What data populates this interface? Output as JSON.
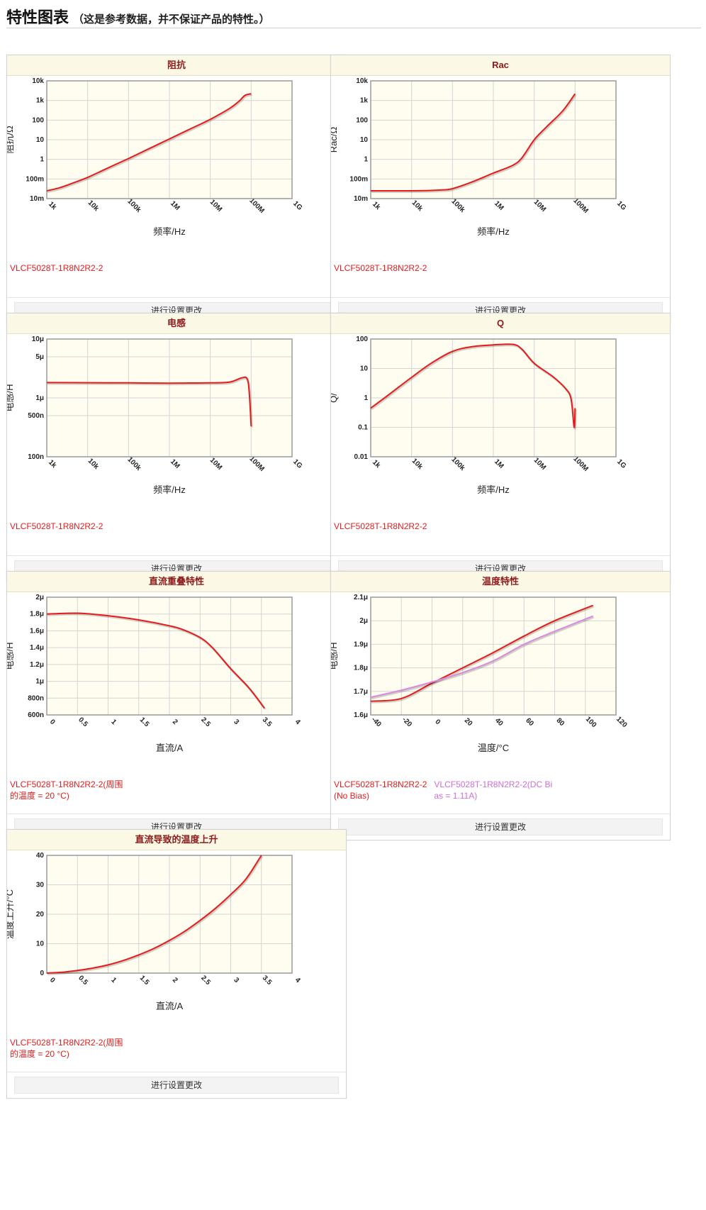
{
  "page": {
    "title": "特性图表",
    "subtitle": "（这是参考数据，并不保证产品的特性。）",
    "settings_label": "进行设置更改"
  },
  "colors": {
    "series_red": "#e31d1d",
    "series_violet": "#d98be0",
    "legend_red": "#e31d1d",
    "legend_violet": "#cc6fd6",
    "plot_bg": "#fffcf0",
    "grid": "#d4d4d4",
    "header_bg": "#fbf8e6",
    "header_text": "#8c1a1a"
  },
  "chart_data": [
    {
      "id": "impedance",
      "type": "line",
      "title": "阻抗",
      "xlabel": "频率/Hz",
      "ylabel": "阻抗/Ω",
      "x_scale": "log",
      "y_scale": "log",
      "xlim": [
        1000,
        1000000000
      ],
      "ylim": [
        0.01,
        10000
      ],
      "x_ticks": [
        1000,
        10000,
        100000,
        1000000,
        10000000,
        100000000,
        1000000000
      ],
      "x_tick_labels": [
        "1k",
        "10k",
        "100k",
        "1M",
        "10M",
        "100M",
        "1G"
      ],
      "y_ticks": [
        0.01,
        0.1,
        1,
        10,
        100,
        1000,
        10000
      ],
      "y_tick_labels": [
        "10m",
        "100m",
        "1",
        "10",
        "100",
        "1k",
        "10k"
      ],
      "grid": true,
      "series": [
        {
          "name": "VLCF5028T-1R8N2R2-2",
          "color": "#e31d1d",
          "x": [
            1000,
            2000,
            4000,
            10000,
            30000,
            100000,
            300000,
            1000000,
            3000000,
            10000000,
            30000000,
            50000000,
            70000000,
            100000000
          ],
          "y": [
            0.025,
            0.035,
            0.058,
            0.12,
            0.35,
            1.1,
            3.3,
            11,
            33,
            110,
            400,
            900,
            1800,
            2200
          ]
        }
      ],
      "legend": [
        [
          "VLCF5028T-1R8N2R2-2"
        ]
      ]
    },
    {
      "id": "rac",
      "type": "line",
      "title": "Rac",
      "xlabel": "频率/Hz",
      "ylabel": "Rac/Ω",
      "x_scale": "log",
      "y_scale": "log",
      "xlim": [
        1000,
        1000000000
      ],
      "ylim": [
        0.01,
        10000
      ],
      "x_ticks": [
        1000,
        10000,
        100000,
        1000000,
        10000000,
        100000000,
        1000000000
      ],
      "x_tick_labels": [
        "1k",
        "10k",
        "100k",
        "1M",
        "10M",
        "100M",
        "1G"
      ],
      "y_ticks": [
        0.01,
        0.1,
        1,
        10,
        100,
        1000,
        10000
      ],
      "y_tick_labels": [
        "10m",
        "100m",
        "1",
        "10",
        "100",
        "1k",
        "10k"
      ],
      "grid": true,
      "series": [
        {
          "name": "VLCF5028T-1R8N2R2-2",
          "color": "#e31d1d",
          "x": [
            1000,
            10000,
            30000,
            60000,
            100000,
            300000,
            1000000,
            3000000,
            5000000,
            10000000,
            20000000,
            50000000,
            100000000
          ],
          "y": [
            0.025,
            0.025,
            0.026,
            0.028,
            0.032,
            0.07,
            0.2,
            0.5,
            1.2,
            10,
            45,
            300,
            2200
          ]
        }
      ],
      "legend": [
        [
          "VLCF5028T-1R8N2R2-2"
        ]
      ]
    },
    {
      "id": "inductance",
      "type": "line",
      "title": "电感",
      "xlabel": "频率/Hz",
      "ylabel": "电感/H",
      "x_scale": "log",
      "y_scale": "log",
      "xlim": [
        1000,
        1000000000
      ],
      "ylim": [
        1e-07,
        1e-05
      ],
      "x_ticks": [
        1000,
        10000,
        100000,
        1000000,
        10000000,
        100000000,
        1000000000
      ],
      "x_tick_labels": [
        "1k",
        "10k",
        "100k",
        "1M",
        "10M",
        "100M",
        "1G"
      ],
      "y_ticks": [
        1e-07,
        5e-07,
        1e-06,
        5e-06,
        1e-05
      ],
      "y_tick_labels": [
        "100n",
        "500n",
        "1μ",
        "5μ",
        "10μ"
      ],
      "grid": true,
      "series": [
        {
          "name": "VLCF5028T-1R8N2R2-2",
          "color": "#e31d1d",
          "x": [
            1000,
            10000,
            100000,
            1000000,
            3000000,
            10000000,
            30000000,
            60000000,
            80000000,
            90000000,
            100000000
          ],
          "y": [
            1.82e-06,
            1.81e-06,
            1.8e-06,
            1.78e-06,
            1.79e-06,
            1.8e-06,
            1.86e-06,
            2.2e-06,
            2.1e-06,
            1.2e-06,
            3.3e-07
          ]
        }
      ],
      "legend": [
        [
          "VLCF5028T-1R8N2R2-2"
        ]
      ]
    },
    {
      "id": "q",
      "type": "line",
      "title": "Q",
      "xlabel": "频率/Hz",
      "ylabel": "Q/",
      "x_scale": "log",
      "y_scale": "log",
      "xlim": [
        1000,
        1000000000
      ],
      "ylim": [
        0.01,
        100
      ],
      "x_ticks": [
        1000,
        10000,
        100000,
        1000000,
        10000000,
        100000000,
        1000000000
      ],
      "x_tick_labels": [
        "1k",
        "10k",
        "100k",
        "1M",
        "10M",
        "100M",
        "1G"
      ],
      "y_ticks": [
        0.01,
        0.1,
        1,
        10,
        100
      ],
      "y_tick_labels": [
        "0.01",
        "0.1",
        "1",
        "10",
        "100"
      ],
      "grid": true,
      "series": [
        {
          "name": "VLCF5028T-1R8N2R2-2",
          "color": "#e31d1d",
          "x": [
            1000,
            3000,
            10000,
            30000,
            100000,
            300000,
            1000000,
            3000000,
            5000000,
            10000000,
            30000000,
            60000000,
            80000000,
            95000000,
            100000000
          ],
          "y": [
            0.45,
            1.4,
            5,
            15,
            38,
            55,
            63,
            66,
            45,
            15,
            5,
            2,
            0.9,
            0.1,
            0.45
          ]
        }
      ],
      "legend": [
        [
          "VLCF5028T-1R8N2R2-2"
        ]
      ]
    },
    {
      "id": "dc_bias",
      "type": "line",
      "title": "直流重叠特性",
      "xlabel": "直流/A",
      "ylabel": "电感/H",
      "x_scale": "linear",
      "y_scale": "linear",
      "xlim": [
        0,
        4
      ],
      "ylim": [
        6e-07,
        2e-06
      ],
      "x_ticks": [
        0,
        0.5,
        1,
        1.5,
        2,
        2.5,
        3,
        3.5,
        4
      ],
      "x_tick_labels": [
        "0",
        "0.5",
        "1",
        "1.5",
        "2",
        "2.5",
        "3",
        "3.5",
        "4"
      ],
      "y_ticks": [
        6e-07,
        8e-07,
        1e-06,
        1.2e-06,
        1.4e-06,
        1.6e-06,
        1.8e-06,
        2e-06
      ],
      "y_tick_labels": [
        "600n",
        "800n",
        "1μ",
        "1.2μ",
        "1.4μ",
        "1.6μ",
        "1.8μ",
        "2μ"
      ],
      "grid": true,
      "series": [
        {
          "name": "VLCF5028T-1R8N2R2-2(周围的温度 = 20 °C)",
          "color": "#e31d1d",
          "x": [
            0,
            0.5,
            1,
            1.5,
            2,
            2.2,
            2.5,
            2.7,
            3,
            3.3,
            3.55
          ],
          "y": [
            1.8e-06,
            1.81e-06,
            1.78e-06,
            1.73e-06,
            1.66e-06,
            1.62e-06,
            1.52e-06,
            1.4e-06,
            1.15e-06,
            9.2e-07,
            6.8e-07
          ]
        }
      ],
      "legend": [
        [
          "VLCF5028T-1R8N2R2-2(周围",
          "的温度 = 20 °C)"
        ]
      ]
    },
    {
      "id": "temperature",
      "type": "line",
      "title": "温度特性",
      "xlabel": "温度/°C",
      "ylabel": "电感/H",
      "x_scale": "linear",
      "y_scale": "linear",
      "xlim": [
        -40,
        120
      ],
      "ylim": [
        1.6e-06,
        2.1e-06
      ],
      "x_ticks": [
        -40,
        -20,
        0,
        20,
        40,
        60,
        80,
        100,
        120
      ],
      "x_tick_labels": [
        "-40",
        "-20",
        "0",
        "20",
        "40",
        "60",
        "80",
        "100",
        "120"
      ],
      "y_ticks": [
        1.6e-06,
        1.7e-06,
        1.8e-06,
        1.9e-06,
        2e-06,
        2.1e-06
      ],
      "y_tick_labels": [
        "1.6μ",
        "1.7μ",
        "1.8μ",
        "1.9μ",
        "2μ",
        "2.1μ"
      ],
      "grid": true,
      "series": [
        {
          "name": "VLCF5028T-1R8N2R2-2(No Bias)",
          "color": "#e31d1d",
          "x": [
            -40,
            -20,
            0,
            20,
            40,
            60,
            80,
            105
          ],
          "y": [
            1.658e-06,
            1.67e-06,
            1.735e-06,
            1.8e-06,
            1.865e-06,
            1.935e-06,
            2e-06,
            2.065e-06
          ]
        },
        {
          "name": "VLCF5028T-1R8N2R2-2(DC Bias = 1.11A)",
          "color": "#d98be0",
          "x": [
            -40,
            -20,
            0,
            20,
            40,
            60,
            80,
            105
          ],
          "y": [
            1.675e-06,
            1.705e-06,
            1.74e-06,
            1.78e-06,
            1.83e-06,
            1.9e-06,
            1.955e-06,
            2.02e-06
          ]
        }
      ],
      "legend": [
        [
          "VLCF5028T-1R8N2R2-2",
          "(No Bias)"
        ],
        [
          "VLCF5028T-1R8N2R2-2(DC Bi",
          "as = 1.11A)"
        ]
      ]
    },
    {
      "id": "temp_rise",
      "type": "line",
      "title": "直流导致的温度上升",
      "xlabel": "直流/A",
      "ylabel": "温度上升/°C",
      "x_scale": "linear",
      "y_scale": "linear",
      "xlim": [
        0,
        4
      ],
      "ylim": [
        0,
        40
      ],
      "x_ticks": [
        0,
        0.5,
        1,
        1.5,
        2,
        2.5,
        3,
        3.5,
        4
      ],
      "x_tick_labels": [
        "0",
        "0.5",
        "1",
        "1.5",
        "2",
        "2.5",
        "3",
        "3.5",
        "4"
      ],
      "y_ticks": [
        0,
        10,
        20,
        30,
        40
      ],
      "y_tick_labels": [
        "0",
        "10",
        "20",
        "30",
        "40"
      ],
      "grid": true,
      "series": [
        {
          "name": "VLCF5028T-1R8N2R2-2(周围的温度 = 20 °C)",
          "color": "#e31d1d",
          "x": [
            0,
            0.25,
            0.5,
            0.75,
            1,
            1.25,
            1.5,
            1.75,
            2,
            2.25,
            2.5,
            2.75,
            3,
            3.25,
            3.5
          ],
          "y": [
            0,
            0.3,
            0.9,
            1.7,
            2.8,
            4.3,
            6.2,
            8.4,
            11.1,
            14.2,
            17.9,
            22,
            26.7,
            32,
            40
          ]
        }
      ],
      "legend": [
        [
          "VLCF5028T-1R8N2R2-2(周围",
          "的温度 = 20 °C)"
        ]
      ]
    }
  ]
}
